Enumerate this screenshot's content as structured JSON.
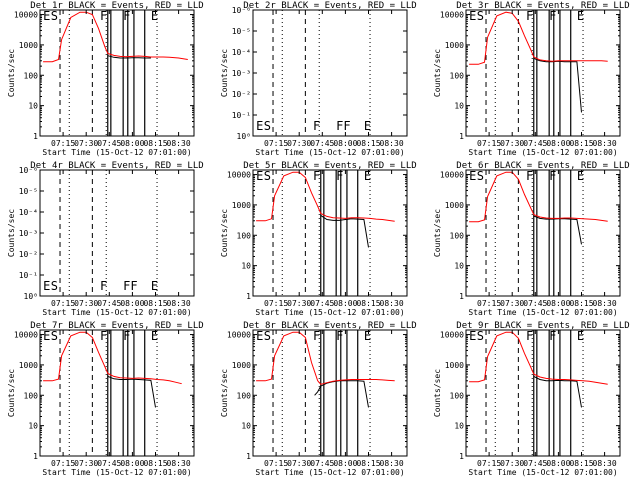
{
  "colors": {
    "events": "#000000",
    "lld": "#ff0000",
    "background": "#ffffff",
    "axes": "#000000"
  },
  "chart_data": [
    {
      "type": "line",
      "title": "Det 1r BLACK = Events, RED = LLD",
      "xlabel": "Start Time (15-Oct-12 07:01:00)",
      "ylabel": "Counts/sec",
      "x_tick_labels": [
        "07:15",
        "07:30",
        "07:45",
        "08:00",
        "08:15",
        "08:30"
      ],
      "y_tick_labels": [
        "1",
        "10",
        "100",
        "1000",
        "10000"
      ],
      "ylim": [
        1,
        10000
      ],
      "yscale": "log",
      "dashed_markers": [
        "07:13",
        "07:34"
      ],
      "dotted_markers": [
        "07:19",
        "07:43",
        "08:16"
      ],
      "solid_markers": [
        "07:44",
        "07:46",
        "07:54",
        "07:57",
        "08:01",
        "08:08"
      ],
      "marker_labels": [
        "E",
        "S",
        "",
        "F",
        "F",
        "E"
      ],
      "series": [
        {
          "name": "Events",
          "color": "#000000",
          "x": [
            "07:44",
            "07:48",
            "07:52",
            "07:56",
            "08:00",
            "08:04",
            "08:08",
            "08:12"
          ],
          "values": [
            440,
            390,
            370,
            370,
            380,
            380,
            370,
            370
          ]
        },
        {
          "name": "LLD",
          "color": "#ff0000",
          "x": [
            "07:02",
            "07:08",
            "07:12",
            "07:14",
            "07:20",
            "07:26",
            "07:30",
            "07:34",
            "07:38",
            "07:42",
            "07:44",
            "07:48",
            "07:52",
            "07:56",
            "08:00",
            "08:04",
            "08:08",
            "08:12",
            "08:16",
            "08:20",
            "08:24",
            "08:30",
            "08:36"
          ],
          "values": [
            280,
            280,
            330,
            1500,
            8000,
            12000,
            12000,
            10000,
            3500,
            900,
            520,
            450,
            420,
            410,
            420,
            430,
            420,
            400,
            400,
            400,
            390,
            370,
            330
          ]
        }
      ]
    },
    {
      "type": "line",
      "title": "Det 2r BLACK = Events, RED = LLD",
      "xlabel": "Start Time (15-Oct-12 07:01:00)",
      "ylabel": "Counts/sec",
      "x_tick_labels": [
        "07:15",
        "07:30",
        "07:45",
        "08:00",
        "08:15",
        "08:30"
      ],
      "y_tick_labels": [
        "10⁰",
        "10⁻¹",
        "10⁻²",
        "10⁻³",
        "10⁻⁴",
        "10⁻⁵",
        "10⁻⁶"
      ],
      "yscale": "log",
      "dashed_markers": [
        "07:13",
        "07:34"
      ],
      "dotted_markers": [
        "07:19",
        "07:43",
        "08:16"
      ],
      "solid_markers": [],
      "marker_labels": [
        "E",
        "S",
        "",
        "F",
        "FF",
        "E"
      ],
      "series": []
    },
    {
      "type": "line",
      "title": "Det 3r BLACK = Events, RED = LLD",
      "xlabel": "Start Time (15-Oct-12 07:01:00)",
      "ylabel": "Counts/sec",
      "x_tick_labels": [
        "07:15",
        "07:30",
        "07:45",
        "08:00",
        "08:15",
        "08:30"
      ],
      "y_tick_labels": [
        "1",
        "10",
        "100",
        "1000",
        "10000"
      ],
      "ylim": [
        1,
        10000
      ],
      "yscale": "log",
      "dashed_markers": [
        "07:13",
        "07:34"
      ],
      "dotted_markers": [
        "07:19",
        "07:43",
        "08:16"
      ],
      "solid_markers": [
        "07:44",
        "07:46",
        "07:54",
        "07:57",
        "08:01",
        "08:08"
      ],
      "marker_labels": [
        "E",
        "S",
        "",
        "F",
        "F",
        "E"
      ],
      "series": [
        {
          "name": "Events",
          "color": "#000000",
          "x": [
            "07:44",
            "07:48",
            "07:52",
            "07:56",
            "08:00",
            "08:04",
            "08:08",
            "08:12",
            "08:15"
          ],
          "values": [
            360,
            300,
            280,
            280,
            290,
            280,
            280,
            280,
            6
          ]
        },
        {
          "name": "LLD",
          "color": "#ff0000",
          "x": [
            "07:02",
            "07:08",
            "07:12",
            "07:14",
            "07:20",
            "07:26",
            "07:30",
            "07:34",
            "07:38",
            "07:42",
            "07:44",
            "07:48",
            "07:52",
            "07:56",
            "08:00",
            "08:04",
            "08:08",
            "08:12",
            "08:16",
            "08:20",
            "08:24",
            "08:28",
            "08:32"
          ],
          "values": [
            230,
            230,
            270,
            1800,
            9000,
            12000,
            11000,
            6000,
            2000,
            700,
            400,
            320,
            300,
            290,
            300,
            300,
            300,
            300,
            300,
            300,
            300,
            300,
            290
          ]
        }
      ]
    },
    {
      "type": "line",
      "title": "Det 4r BLACK = Events, RED = LLD",
      "xlabel": "Start Time (15-Oct-12 07:01:00)",
      "ylabel": "Counts/sec",
      "x_tick_labels": [
        "07:15",
        "07:30",
        "07:45",
        "08:00",
        "08:15",
        "08:30"
      ],
      "y_tick_labels": [
        "10⁰",
        "10⁻¹",
        "10⁻²",
        "10⁻³",
        "10⁻⁴",
        "10⁻⁵",
        "10⁻⁶"
      ],
      "yscale": "log",
      "dashed_markers": [
        "07:13",
        "07:34"
      ],
      "dotted_markers": [
        "07:19",
        "07:43",
        "08:16"
      ],
      "solid_markers": [],
      "marker_labels": [
        "E",
        "S",
        "",
        "F",
        "FF",
        "E"
      ],
      "series": []
    },
    {
      "type": "line",
      "title": "Det 5r BLACK = Events, RED = LLD",
      "xlabel": "Start Time (15-Oct-12 07:01:00)",
      "ylabel": "Counts/sec",
      "x_tick_labels": [
        "07:15",
        "07:30",
        "07:45",
        "08:00",
        "08:15",
        "08:30"
      ],
      "y_tick_labels": [
        "1",
        "10",
        "100",
        "1000",
        "10000"
      ],
      "ylim": [
        1,
        10000
      ],
      "yscale": "log",
      "dashed_markers": [
        "07:13",
        "07:34"
      ],
      "dotted_markers": [
        "07:19",
        "07:43",
        "08:16"
      ],
      "solid_markers": [
        "07:44",
        "07:46",
        "07:54",
        "07:57",
        "08:01",
        "08:08"
      ],
      "marker_labels": [
        "E",
        "S",
        "",
        "F",
        "F",
        "E"
      ],
      "series": [
        {
          "name": "Events",
          "color": "#000000",
          "x": [
            "07:44",
            "07:48",
            "07:52",
            "07:56",
            "08:00",
            "08:04",
            "08:08",
            "08:12",
            "08:15"
          ],
          "values": [
            450,
            330,
            310,
            310,
            330,
            350,
            340,
            330,
            40
          ]
        },
        {
          "name": "LLD",
          "color": "#ff0000",
          "x": [
            "07:02",
            "07:08",
            "07:12",
            "07:14",
            "07:20",
            "07:26",
            "07:30",
            "07:34",
            "07:38",
            "07:42",
            "07:44",
            "07:48",
            "07:52",
            "07:56",
            "08:00",
            "08:04",
            "08:08",
            "08:12",
            "08:16",
            "08:20",
            "08:24",
            "08:28",
            "08:32"
          ],
          "values": [
            300,
            300,
            350,
            2000,
            9000,
            12000,
            12000,
            8000,
            2500,
            900,
            520,
            420,
            380,
            370,
            360,
            380,
            380,
            370,
            360,
            340,
            330,
            310,
            290
          ]
        }
      ]
    },
    {
      "type": "line",
      "title": "Det 6r BLACK = Events, RED = LLD",
      "xlabel": "Start Time (15-Oct-12 07:01:00)",
      "ylabel": "Counts/sec",
      "x_tick_labels": [
        "07:15",
        "07:30",
        "07:45",
        "08:00",
        "08:15",
        "08:30"
      ],
      "y_tick_labels": [
        "1",
        "10",
        "100",
        "1000",
        "10000"
      ],
      "ylim": [
        1,
        10000
      ],
      "yscale": "log",
      "dashed_markers": [
        "07:13",
        "07:34"
      ],
      "dotted_markers": [
        "07:19",
        "07:43",
        "08:16"
      ],
      "solid_markers": [
        "07:44",
        "07:46",
        "07:54",
        "07:57",
        "08:01",
        "08:08"
      ],
      "marker_labels": [
        "E",
        "S",
        "",
        "F",
        "F",
        "E"
      ],
      "series": [
        {
          "name": "Events",
          "color": "#000000",
          "x": [
            "07:44",
            "07:48",
            "07:52",
            "07:56",
            "08:00",
            "08:04",
            "08:08",
            "08:12",
            "08:15"
          ],
          "values": [
            430,
            360,
            340,
            340,
            350,
            350,
            340,
            330,
            50
          ]
        },
        {
          "name": "LLD",
          "color": "#ff0000",
          "x": [
            "07:02",
            "07:08",
            "07:12",
            "07:14",
            "07:20",
            "07:26",
            "07:30",
            "07:34",
            "07:38",
            "07:42",
            "07:44",
            "07:48",
            "07:52",
            "07:56",
            "08:00",
            "08:04",
            "08:08",
            "08:12",
            "08:16",
            "08:20",
            "08:24",
            "08:28",
            "08:32"
          ],
          "values": [
            280,
            280,
            320,
            1900,
            9000,
            12000,
            12000,
            7000,
            2200,
            800,
            480,
            400,
            370,
            360,
            360,
            370,
            370,
            360,
            350,
            340,
            330,
            310,
            290
          ]
        }
      ]
    },
    {
      "type": "line",
      "title": "Det 7r BLACK = Events, RED = LLD",
      "xlabel": "Start Time (15-Oct-12 07:01:00)",
      "ylabel": "Counts/sec",
      "x_tick_labels": [
        "07:15",
        "07:30",
        "07:45",
        "08:00",
        "08:15",
        "08:30"
      ],
      "y_tick_labels": [
        "1",
        "10",
        "100",
        "1000",
        "10000"
      ],
      "ylim": [
        1,
        10000
      ],
      "yscale": "log",
      "dashed_markers": [
        "07:13",
        "07:34"
      ],
      "dotted_markers": [
        "07:19",
        "07:43",
        "08:16"
      ],
      "solid_markers": [
        "07:44",
        "07:46",
        "07:54",
        "07:57",
        "08:01",
        "08:08"
      ],
      "marker_labels": [
        "E",
        "S",
        "",
        "F",
        "F",
        "E"
      ],
      "series": [
        {
          "name": "Events",
          "color": "#000000",
          "x": [
            "07:44",
            "07:48",
            "07:52",
            "07:56",
            "08:00",
            "08:04",
            "08:08",
            "08:12",
            "08:15"
          ],
          "values": [
            420,
            350,
            330,
            330,
            340,
            330,
            320,
            310,
            40
          ]
        },
        {
          "name": "LLD",
          "color": "#ff0000",
          "x": [
            "07:02",
            "07:08",
            "07:12",
            "07:14",
            "07:20",
            "07:26",
            "07:30",
            "07:34",
            "07:38",
            "07:42",
            "07:44",
            "07:48",
            "07:52",
            "07:56",
            "08:00",
            "08:04",
            "08:08",
            "08:12",
            "08:16",
            "08:20",
            "08:24",
            "08:28",
            "08:32"
          ],
          "values": [
            300,
            300,
            340,
            2000,
            9000,
            12000,
            12000,
            8000,
            2600,
            900,
            520,
            420,
            380,
            370,
            360,
            370,
            360,
            350,
            330,
            320,
            300,
            270,
            240
          ]
        }
      ]
    },
    {
      "type": "line",
      "title": "Det 8r BLACK = Events, RED = LLD",
      "xlabel": "Start Time (15-Oct-12 07:01:00)",
      "ylabel": "Counts/sec",
      "x_tick_labels": [
        "07:15",
        "07:30",
        "07:45",
        "08:00",
        "08:15",
        "08:30"
      ],
      "y_tick_labels": [
        "1",
        "10",
        "100",
        "1000",
        "10000"
      ],
      "ylim": [
        1,
        10000
      ],
      "yscale": "log",
      "dashed_markers": [
        "07:13",
        "07:34"
      ],
      "dotted_markers": [
        "07:19",
        "07:43",
        "08:16"
      ],
      "solid_markers": [
        "07:44",
        "07:46",
        "07:54",
        "07:57",
        "08:01",
        "08:08"
      ],
      "marker_labels": [
        "E",
        "S",
        "",
        "F",
        "F",
        "E"
      ],
      "series": [
        {
          "name": "Events",
          "color": "#000000",
          "x": [
            "07:40",
            "07:42",
            "07:44",
            "07:48",
            "07:52",
            "07:56",
            "08:00",
            "08:04",
            "08:08",
            "08:12",
            "08:15"
          ],
          "values": [
            100,
            130,
            200,
            250,
            280,
            300,
            300,
            300,
            300,
            290,
            40
          ]
        },
        {
          "name": "LLD",
          "color": "#ff0000",
          "x": [
            "07:02",
            "07:08",
            "07:12",
            "07:14",
            "07:20",
            "07:26",
            "07:30",
            "07:34",
            "07:38",
            "07:42",
            "07:44",
            "07:48",
            "07:52",
            "07:56",
            "08:00",
            "08:04",
            "08:08",
            "08:12",
            "08:16",
            "08:20",
            "08:24",
            "08:28",
            "08:32"
          ],
          "values": [
            300,
            300,
            340,
            2000,
            9000,
            12000,
            12000,
            8000,
            1200,
            300,
            230,
            260,
            290,
            310,
            320,
            330,
            330,
            330,
            330,
            330,
            320,
            310,
            300
          ]
        }
      ]
    },
    {
      "type": "line",
      "title": "Det 9r BLACK = Events, RED = LLD",
      "xlabel": "Start Time (15-Oct-12 07:01:00)",
      "ylabel": "Counts/sec",
      "x_tick_labels": [
        "07:15",
        "07:30",
        "07:45",
        "08:00",
        "08:15",
        "08:30"
      ],
      "y_tick_labels": [
        "1",
        "10",
        "100",
        "1000",
        "10000"
      ],
      "ylim": [
        1,
        10000
      ],
      "yscale": "log",
      "dashed_markers": [
        "07:13",
        "07:34"
      ],
      "dotted_markers": [
        "07:19",
        "07:43",
        "08:16"
      ],
      "solid_markers": [
        "07:44",
        "07:46",
        "07:54",
        "07:57",
        "08:01",
        "08:08"
      ],
      "marker_labels": [
        "E",
        "S",
        "",
        "F",
        "F",
        "E"
      ],
      "series": [
        {
          "name": "Events",
          "color": "#000000",
          "x": [
            "07:44",
            "07:48",
            "07:52",
            "07:56",
            "08:00",
            "08:04",
            "08:08",
            "08:12",
            "08:15"
          ],
          "values": [
            420,
            330,
            300,
            300,
            310,
            300,
            300,
            290,
            40
          ]
        },
        {
          "name": "LLD",
          "color": "#ff0000",
          "x": [
            "07:02",
            "07:08",
            "07:12",
            "07:14",
            "07:20",
            "07:26",
            "07:30",
            "07:34",
            "07:38",
            "07:42",
            "07:44",
            "07:48",
            "07:52",
            "07:56",
            "08:00",
            "08:04",
            "08:08",
            "08:12",
            "08:16",
            "08:20",
            "08:24",
            "08:28",
            "08:32"
          ],
          "values": [
            280,
            280,
            320,
            1900,
            9000,
            12000,
            12000,
            7500,
            2400,
            850,
            500,
            400,
            360,
            340,
            330,
            330,
            320,
            310,
            300,
            290,
            270,
            250,
            230
          ]
        }
      ]
    }
  ]
}
